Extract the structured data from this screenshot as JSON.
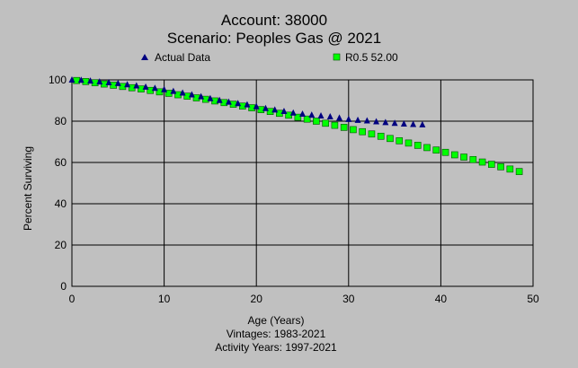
{
  "chart_data": {
    "type": "scatter",
    "title": "Account: 38000",
    "subtitle": "Scenario: Peoples Gas @ 2021",
    "xlabel": "Age (Years)",
    "ylabel": "Percent Surviving",
    "footer": [
      "Vintages: 1983-2021",
      "Activity Years: 1997-2021"
    ],
    "xlim": [
      0,
      50
    ],
    "ylim": [
      0,
      100
    ],
    "xticks": [
      0,
      10,
      20,
      30,
      40,
      50
    ],
    "yticks": [
      0,
      20,
      40,
      60,
      80,
      100
    ],
    "grid": true,
    "legend_position": "top",
    "series": [
      {
        "name": "Actual Data",
        "marker": "triangle",
        "color": "#000080",
        "x": [
          0,
          1,
          2,
          3,
          4,
          5,
          6,
          7,
          8,
          9,
          10,
          11,
          12,
          13,
          14,
          15,
          16,
          17,
          18,
          19,
          20,
          21,
          22,
          23,
          24,
          25,
          26,
          27,
          28,
          29,
          30,
          31,
          32,
          33,
          34,
          35,
          36,
          37,
          38
        ],
        "y": [
          100,
          99.9,
          99.5,
          99.1,
          98.7,
          98.3,
          97.7,
          97.2,
          96.6,
          96.0,
          95.3,
          94.5,
          93.7,
          92.8,
          91.9,
          91.0,
          90.1,
          89.3,
          88.6,
          88.0,
          87.1,
          86.2,
          85.5,
          84.8,
          84.0,
          83.5,
          83.0,
          82.6,
          82.2,
          81.6,
          80.9,
          80.5,
          80.2,
          79.8,
          79.4,
          79.0,
          78.7,
          78.5,
          78.3
        ]
      },
      {
        "name": "R0.5 52.00",
        "marker": "square",
        "color": "#00ff00",
        "x": [
          0.5,
          1.5,
          2.5,
          3.5,
          4.5,
          5.5,
          6.5,
          7.5,
          8.5,
          9.5,
          10.5,
          11.5,
          12.5,
          13.5,
          14.5,
          15.5,
          16.5,
          17.5,
          18.5,
          19.5,
          20.5,
          21.5,
          22.5,
          23.5,
          24.5,
          25.5,
          26.5,
          27.5,
          28.5,
          29.5,
          30.5,
          31.5,
          32.5,
          33.5,
          34.5,
          35.5,
          36.5,
          37.5,
          38.5,
          39.5,
          40.5,
          41.5,
          42.5,
          43.5,
          44.5,
          45.5,
          46.5,
          47.5,
          48.5
        ],
        "y": [
          99.7,
          99.2,
          98.6,
          98.0,
          97.4,
          96.8,
          96.2,
          95.6,
          94.9,
          94.2,
          93.5,
          92.8,
          92.1,
          91.3,
          90.6,
          89.8,
          89.0,
          88.2,
          87.3,
          86.5,
          85.6,
          84.7,
          83.8,
          82.9,
          81.9,
          81.0,
          80.0,
          79.0,
          78.0,
          77.0,
          75.9,
          74.9,
          73.8,
          72.7,
          71.6,
          70.5,
          69.4,
          68.3,
          67.2,
          66.0,
          64.9,
          63.7,
          62.6,
          61.4,
          60.2,
          59.1,
          57.9,
          56.8,
          55.6
        ]
      }
    ]
  }
}
